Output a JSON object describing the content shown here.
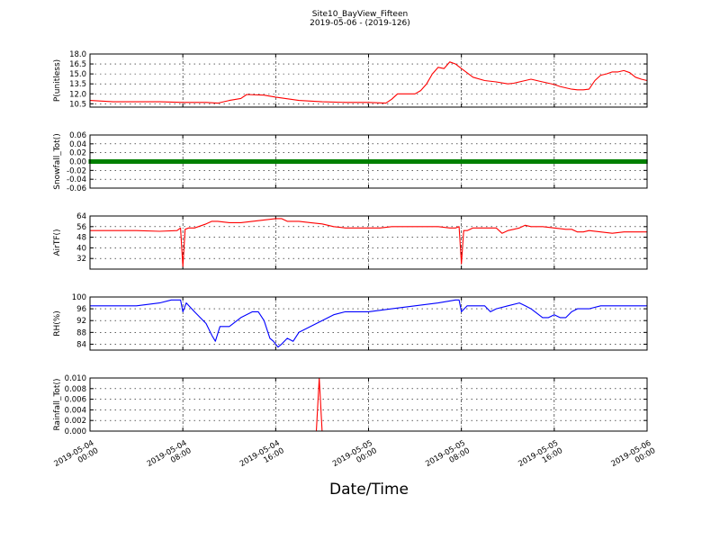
{
  "figure": {
    "title": "Site10_BayView_Fifteen",
    "subtitle": "2019-05-06 - (2019-126)",
    "xlabel": "Date/Time"
  },
  "chart_data": [
    {
      "type": "line",
      "ylabel": "P(unitless)",
      "yticks": [
        "10.5",
        "12.0",
        "13.5",
        "15.0",
        "16.5",
        "18.0"
      ],
      "ylim": [
        10.0,
        18.0
      ],
      "color": "#ff0000",
      "x_hours": [
        0,
        2,
        4,
        6,
        8,
        10,
        11,
        12,
        13,
        13.5,
        15,
        16,
        18,
        20,
        22,
        24,
        25.5,
        26,
        26.5,
        27,
        28,
        28.5,
        29,
        29.5,
        30,
        30.5,
        31,
        31.5,
        32,
        33,
        34,
        35,
        36,
        36.5,
        37,
        38,
        39,
        40,
        40.5,
        41,
        41.5,
        42,
        42.5,
        43,
        43.5,
        44,
        44.5,
        45,
        45.5,
        46,
        46.5,
        47,
        47.5,
        48
      ],
      "y": [
        11.0,
        10.8,
        10.8,
        10.8,
        10.7,
        10.7,
        10.6,
        11.0,
        11.3,
        11.9,
        11.8,
        11.5,
        11.0,
        10.8,
        10.7,
        10.7,
        10.6,
        11.2,
        12.0,
        12.0,
        12.0,
        12.5,
        13.5,
        15.0,
        16.0,
        15.8,
        16.8,
        16.5,
        15.8,
        14.5,
        14.0,
        13.8,
        13.5,
        13.6,
        13.8,
        14.2,
        13.8,
        13.4,
        13.1,
        12.9,
        12.7,
        12.6,
        12.6,
        12.7,
        14.0,
        14.8,
        15.0,
        15.3,
        15.3,
        15.5,
        15.2,
        14.5,
        14.2,
        14.0
      ]
    },
    {
      "type": "line",
      "ylabel": "Snowfall_Tot()",
      "yticks": [
        "-0.06",
        "-0.04",
        "-0.02",
        "0.00",
        "0.02",
        "0.04",
        "0.06"
      ],
      "ylim": [
        -0.06,
        0.06
      ],
      "color": "#008000",
      "x_hours": [
        0,
        48
      ],
      "y": [
        0.0,
        0.0
      ]
    },
    {
      "type": "line",
      "ylabel": "AirTF()",
      "yticks": [
        "32",
        "40",
        "48",
        "56",
        "64"
      ],
      "ylim": [
        24,
        64
      ],
      "color": "#ff0000",
      "x_hours": [
        0,
        2,
        4,
        6,
        7.5,
        7.8,
        8.0,
        8.2,
        8.5,
        9,
        10,
        10.5,
        11,
        12,
        13,
        14,
        15,
        16,
        16.5,
        17,
        18,
        19,
        20,
        21,
        22,
        23,
        24,
        25,
        26,
        27,
        28,
        29,
        30,
        31,
        31.5,
        31.8,
        32.0,
        32.2,
        32.5,
        33,
        34,
        35,
        35.5,
        36,
        36.5,
        37,
        37.5,
        38,
        39,
        40,
        41,
        41.5,
        42,
        42.5,
        43,
        44,
        45,
        46,
        47,
        48
      ],
      "y": [
        53,
        53,
        53,
        52.5,
        53,
        55,
        26,
        54,
        55,
        55,
        58,
        60,
        60,
        59,
        59,
        60,
        61,
        62,
        62,
        60,
        60,
        59,
        58,
        56,
        55,
        55,
        55,
        55,
        56,
        56,
        56,
        56,
        56,
        55,
        55,
        56,
        28,
        53,
        53,
        55,
        55,
        55,
        51,
        53,
        54,
        55,
        57,
        56,
        56,
        55,
        54,
        54,
        52,
        52,
        53,
        52,
        51,
        52,
        52,
        52
      ]
    },
    {
      "type": "line",
      "ylabel": "RH(%)",
      "yticks": [
        "84",
        "88",
        "92",
        "96",
        "100"
      ],
      "ylim": [
        82,
        100
      ],
      "color": "#0000ff",
      "x_hours": [
        0,
        2,
        4,
        6,
        7,
        7.8,
        8.0,
        8.3,
        9,
        10,
        10.5,
        10.8,
        11.2,
        12,
        13,
        14,
        14.5,
        15,
        15.5,
        15.8,
        16.2,
        16.5,
        17,
        17.5,
        18,
        19,
        20,
        21,
        22,
        24,
        26,
        28,
        30,
        31.5,
        31.8,
        32.0,
        32.5,
        33,
        34,
        34.5,
        35,
        36,
        37,
        37.5,
        38,
        39,
        39.5,
        40,
        40.5,
        41,
        41.5,
        42,
        43,
        44,
        45,
        46,
        47,
        48
      ],
      "y": [
        97,
        97,
        97,
        98,
        99,
        99,
        95,
        98,
        95,
        91,
        87,
        85,
        90,
        90,
        93,
        95,
        95,
        92,
        86,
        85,
        83,
        84,
        86,
        85,
        88,
        90,
        92,
        94,
        95,
        95,
        96,
        97,
        98,
        99,
        99,
        95,
        97,
        97,
        97,
        95,
        96,
        97,
        98,
        97,
        96,
        93,
        93,
        94,
        93,
        93,
        95,
        96,
        96,
        97,
        97,
        97,
        97,
        97
      ]
    },
    {
      "type": "line",
      "ylabel": "Rainfall_Tot()",
      "yticks": [
        "0.000",
        "0.002",
        "0.004",
        "0.006",
        "0.008",
        "0.010"
      ],
      "ylim": [
        0.0,
        0.01
      ],
      "color": "#ff0000",
      "x_hours": [
        0,
        19.5,
        19.75,
        20.0,
        48
      ],
      "y": [
        0.0,
        0.0,
        0.01,
        0.0,
        0.0
      ]
    }
  ],
  "x_axis": {
    "xlim_hours": [
      0,
      48
    ],
    "tick_hours": [
      0,
      8,
      16,
      24,
      32,
      40,
      48
    ],
    "tick_labels": [
      [
        "2019-05-04",
        "00:00"
      ],
      [
        "2019-05-04",
        "08:00"
      ],
      [
        "2019-05-04",
        "16:00"
      ],
      [
        "2019-05-05",
        "00:00"
      ],
      [
        "2019-05-05",
        "08:00"
      ],
      [
        "2019-05-05",
        "16:00"
      ],
      [
        "2019-05-06",
        "00:00"
      ]
    ]
  }
}
